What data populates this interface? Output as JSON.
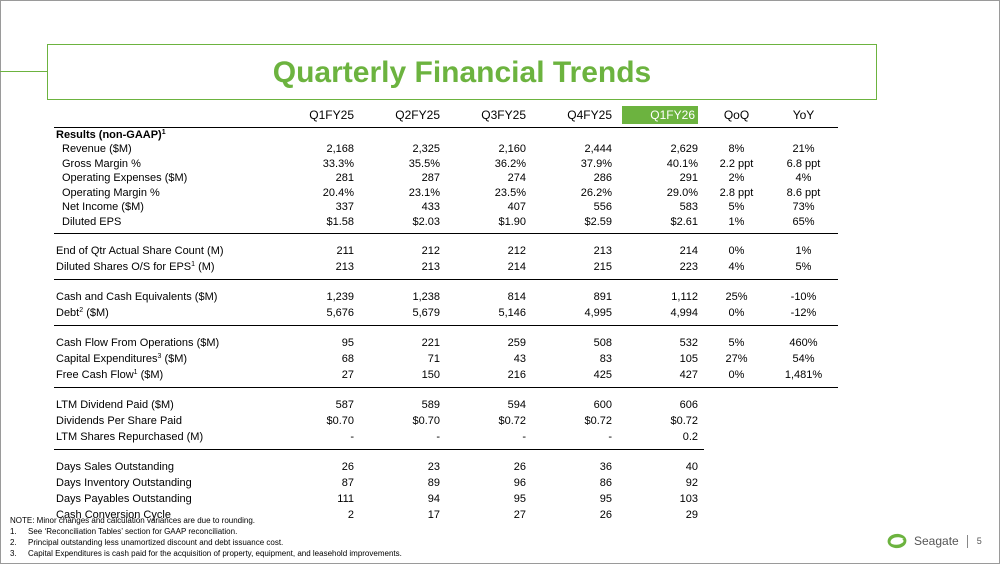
{
  "title": "Quarterly Financial Trends",
  "highlight_color": "#6cb33f",
  "columns": [
    "Q1FY25",
    "Q2FY25",
    "Q3FY25",
    "Q4FY25",
    "Q1FY26",
    "QoQ",
    "YoY"
  ],
  "highlight_column": "Q1FY26",
  "section_title": "Results (non-GAAP)",
  "section_title_sup": "1",
  "rows": [
    {
      "label": "Revenue ($M)",
      "values": [
        "2,168",
        "2,325",
        "2,160",
        "2,444",
        "2,629"
      ],
      "qoq": "8%",
      "yoy": "21%"
    },
    {
      "label": "Gross Margin %",
      "values": [
        "33.3%",
        "35.5%",
        "36.2%",
        "37.9%",
        "40.1%"
      ],
      "qoq": "2.2 ppt",
      "yoy": "6.8 ppt"
    },
    {
      "label": "Operating Expenses ($M)",
      "values": [
        "281",
        "287",
        "274",
        "286",
        "291"
      ],
      "qoq": "2%",
      "yoy": "4%"
    },
    {
      "label": "Operating Margin %",
      "values": [
        "20.4%",
        "23.1%",
        "23.5%",
        "26.2%",
        "29.0%"
      ],
      "qoq": "2.8 ppt",
      "yoy": "8.6 ppt"
    },
    {
      "label": "Net Income ($M)",
      "values": [
        "337",
        "433",
        "407",
        "556",
        "583"
      ],
      "qoq": "5%",
      "yoy": "73%"
    },
    {
      "label": "Diluted EPS",
      "values": [
        "$1.58",
        "$2.03",
        "$1.90",
        "$2.59",
        "$2.61"
      ],
      "qoq": "1%",
      "yoy": "65%"
    },
    {
      "label": "End of Qtr Actual Share Count (M)",
      "values": [
        "211",
        "212",
        "212",
        "213",
        "214"
      ],
      "qoq": "0%",
      "yoy": "1%"
    },
    {
      "label": "Diluted Shares O/S for EPS",
      "sup": "1",
      "suffix": " (M)",
      "values": [
        "213",
        "213",
        "214",
        "215",
        "223"
      ],
      "qoq": "4%",
      "yoy": "5%"
    },
    {
      "label": "Cash and Cash Equivalents ($M)",
      "values": [
        "1,239",
        "1,238",
        "814",
        "891",
        "1,112"
      ],
      "qoq": "25%",
      "yoy": "-10%"
    },
    {
      "label": "Debt",
      "sup": "2",
      "suffix": " ($M)",
      "values": [
        "5,676",
        "5,679",
        "5,146",
        "4,995",
        "4,994"
      ],
      "qoq": "0%",
      "yoy": "-12%"
    },
    {
      "label": "Cash Flow From Operations ($M)",
      "values": [
        "95",
        "221",
        "259",
        "508",
        "532"
      ],
      "qoq": "5%",
      "yoy": "460%"
    },
    {
      "label": "Capital Expenditures",
      "sup": "3",
      "suffix": " ($M)",
      "values": [
        "68",
        "71",
        "43",
        "83",
        "105"
      ],
      "qoq": "27%",
      "yoy": "54%"
    },
    {
      "label": "Free Cash Flow",
      "sup": "1",
      "suffix": " ($M)",
      "values": [
        "27",
        "150",
        "216",
        "425",
        "427"
      ],
      "qoq": "0%",
      "yoy": "1,481%"
    },
    {
      "label": "LTM Dividend Paid ($M)",
      "values": [
        "587",
        "589",
        "594",
        "600",
        "606"
      ]
    },
    {
      "label": "Dividends Per Share Paid",
      "values": [
        "$0.70",
        "$0.70",
        "$0.72",
        "$0.72",
        "$0.72"
      ]
    },
    {
      "label": "LTM Shares Repurchased (M)",
      "values": [
        "-",
        "-",
        "-",
        "-",
        "0.2"
      ]
    },
    {
      "label": "Days Sales Outstanding",
      "values": [
        "26",
        "23",
        "26",
        "36",
        "40"
      ]
    },
    {
      "label": "Days Inventory Outstanding",
      "values": [
        "87",
        "89",
        "96",
        "86",
        "92"
      ]
    },
    {
      "label": "Days Payables Outstanding",
      "values": [
        "111",
        "94",
        "95",
        "95",
        "103"
      ]
    },
    {
      "label": "Cash Conversion Cycle",
      "values": [
        "2",
        "17",
        "27",
        "26",
        "29"
      ]
    }
  ],
  "notes": [
    {
      "num": "",
      "text": "NOTE: Minor changes and calculation variances are due to rounding."
    },
    {
      "num": "1.",
      "text": "See ‘Reconciliation Tables’ section for GAAP reconciliation."
    },
    {
      "num": "2.",
      "text": "Principal outstanding less unamortized discount and debt issuance cost."
    },
    {
      "num": "3.",
      "text": "Capital Expenditures is cash paid for the acquisition of property, equipment, and leasehold improvements."
    }
  ],
  "footer": {
    "brand": "Seagate",
    "page": "5"
  }
}
